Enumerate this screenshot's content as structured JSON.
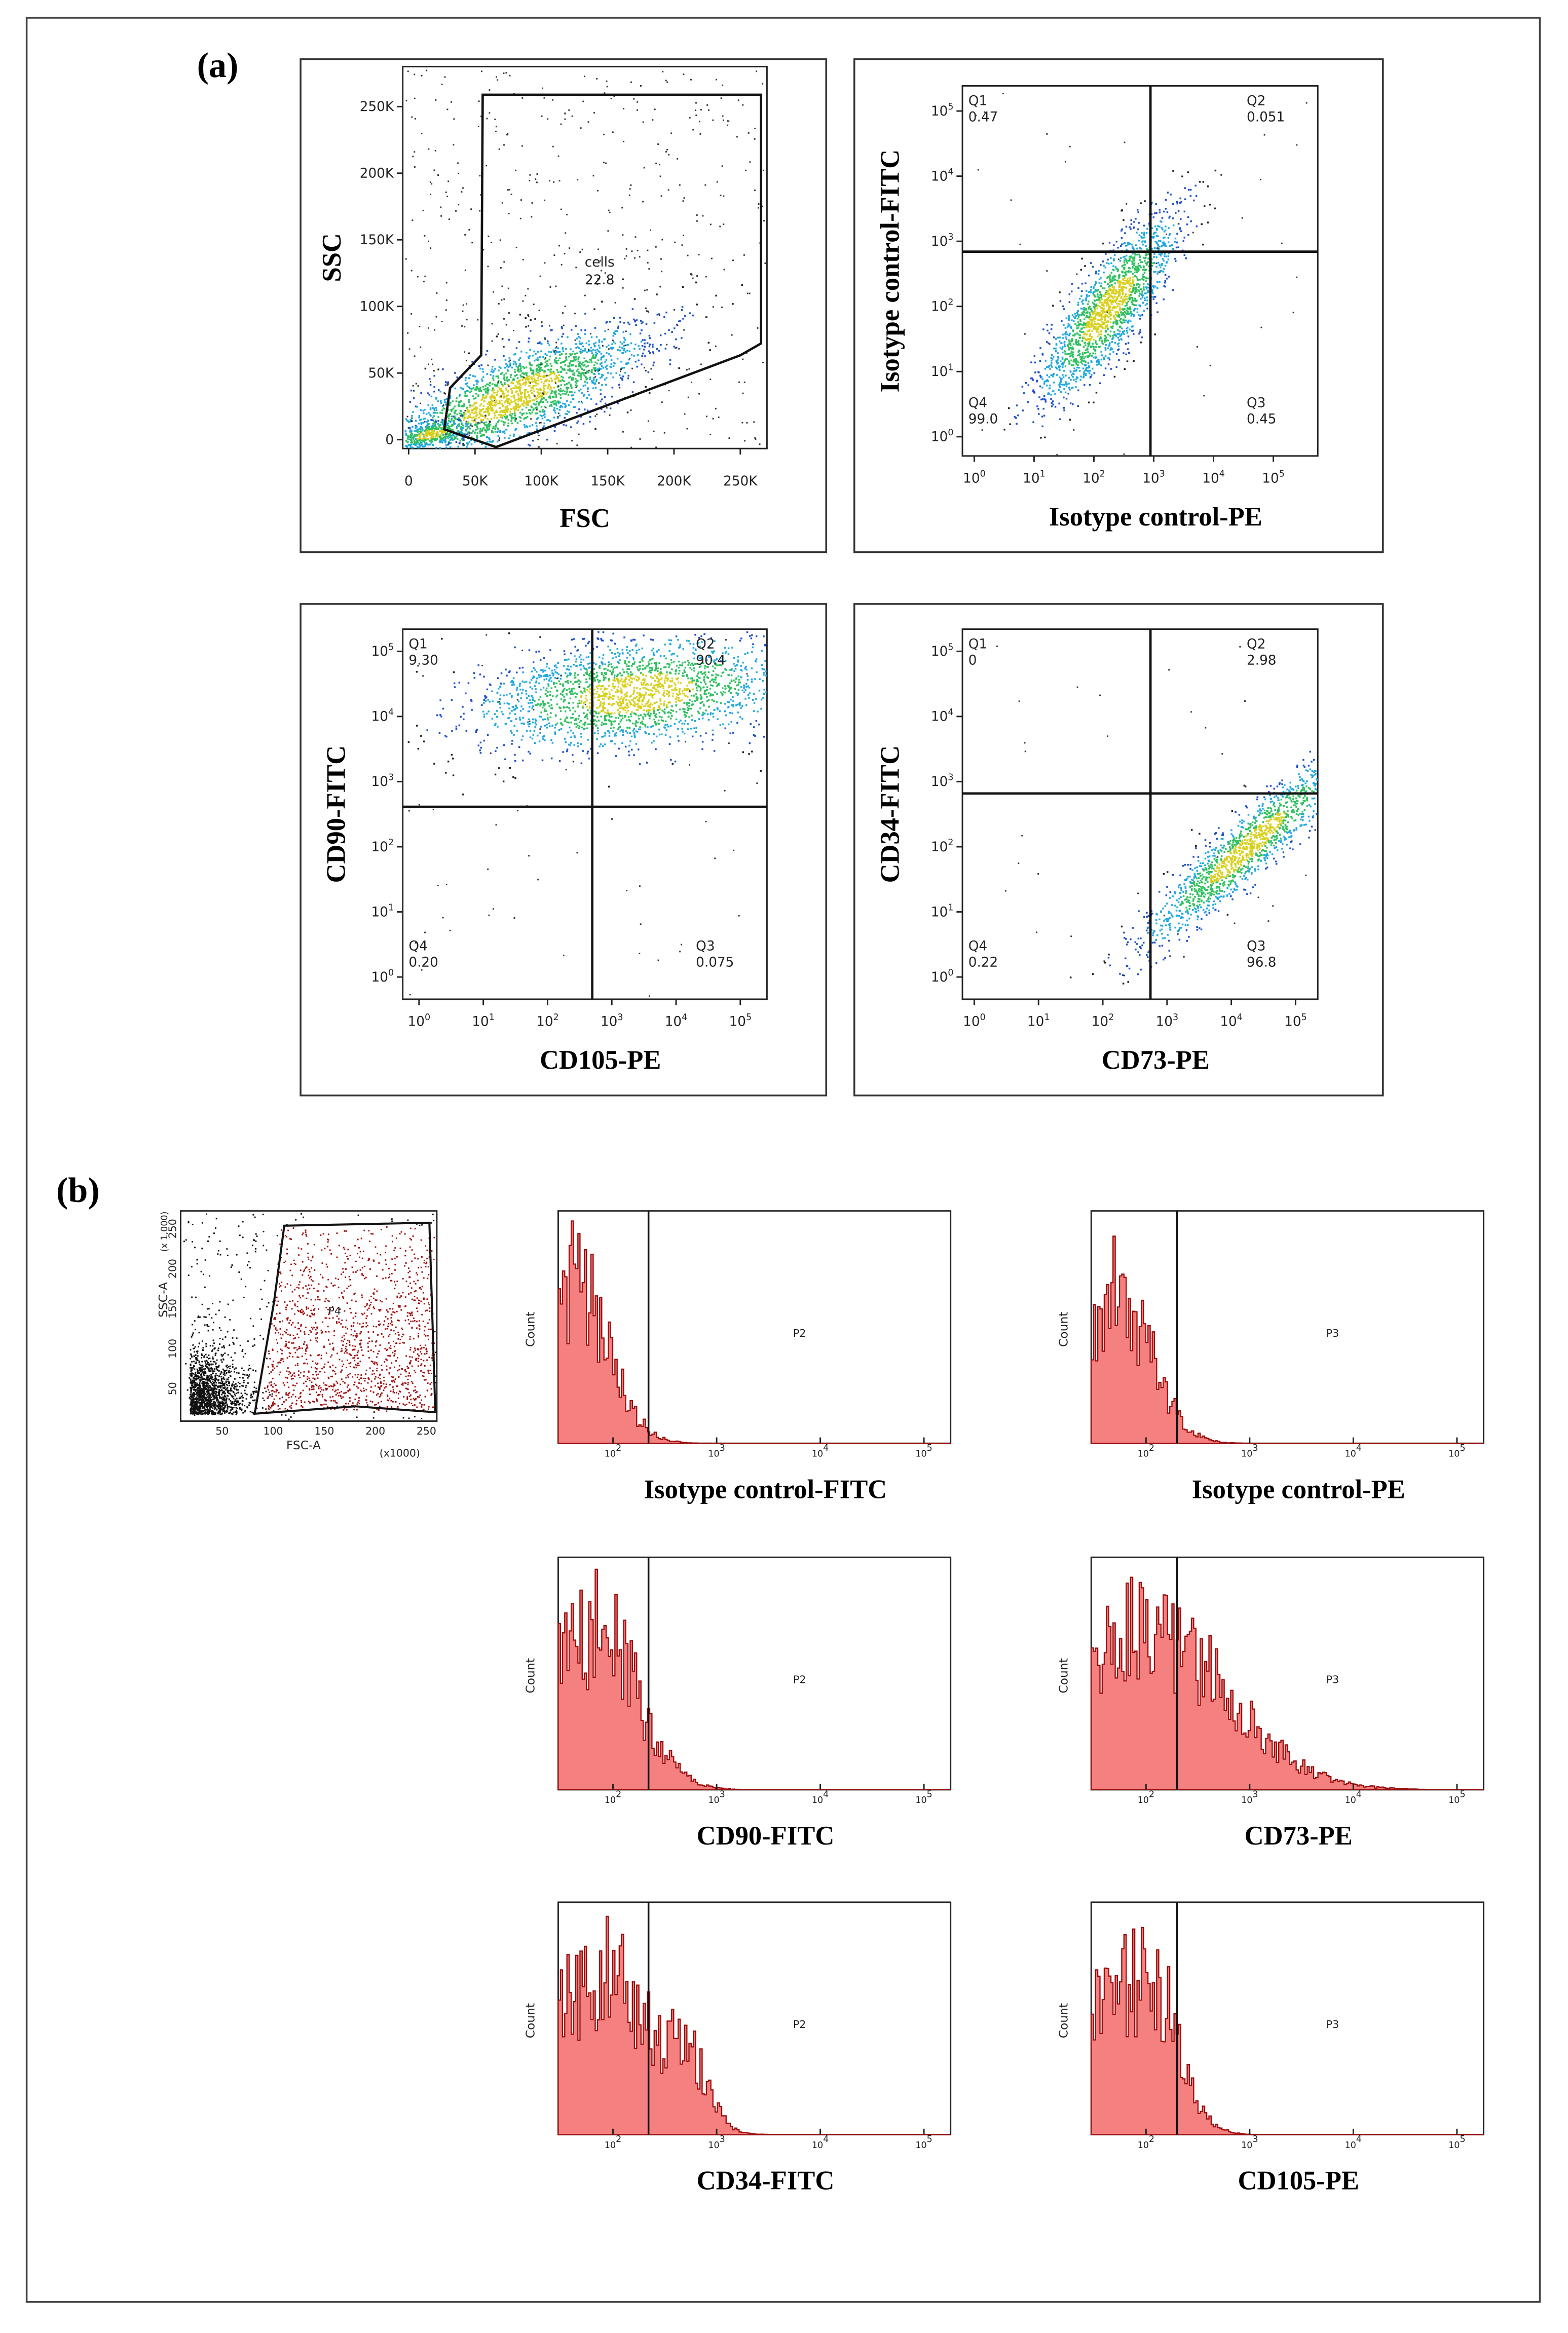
{
  "panel_a": {
    "label": "(a)",
    "scatter": {
      "x_label": "FSC",
      "y_label": "SSC",
      "x_ticks": [
        "0",
        "50K",
        "100K",
        "150K",
        "200K",
        "250K"
      ],
      "y_ticks": [
        "0",
        "50K",
        "100K",
        "150K",
        "200K",
        "250K"
      ],
      "gate_name": "cells",
      "gate_value": "22.8"
    },
    "tick_base": "10",
    "tick_exponents": [
      "0",
      "1",
      "2",
      "3",
      "4",
      "5"
    ],
    "quadrant_plots": [
      {
        "x_label": "Isotype control-PE",
        "y_label": "Isotype control-FITC",
        "quadrants": [
          {
            "name": "Q1",
            "value": "0.47"
          },
          {
            "name": "Q2",
            "value": "0.051"
          },
          {
            "name": "Q3",
            "value": "0.45"
          },
          {
            "name": "Q4",
            "value": "99.0"
          }
        ]
      },
      {
        "x_label": "CD105-PE",
        "y_label": "CD90-FITC",
        "quadrants": [
          {
            "name": "Q1",
            "value": "9.30"
          },
          {
            "name": "Q2",
            "value": "90.4"
          },
          {
            "name": "Q3",
            "value": "0.075"
          },
          {
            "name": "Q4",
            "value": "0.20"
          }
        ]
      },
      {
        "x_label": "CD73-PE",
        "y_label": "CD34-FITC",
        "quadrants": [
          {
            "name": "Q1",
            "value": "0"
          },
          {
            "name": "Q2",
            "value": "2.98"
          },
          {
            "name": "Q3",
            "value": "96.8"
          },
          {
            "name": "Q4",
            "value": "0.22"
          }
        ]
      }
    ]
  },
  "panel_b": {
    "label": "(b)",
    "gate_plot": {
      "x_label": "FSC-A",
      "x_unit": "(x1000)",
      "y_label": "SSC-A",
      "y_unit": "(x 1,000)",
      "gate_name": "P4",
      "x_ticks": [
        "50",
        "100",
        "150",
        "200",
        "250"
      ],
      "y_ticks": [
        "50",
        "100",
        "150",
        "200",
        "250"
      ]
    },
    "y_label": "Count",
    "tick_base": "10",
    "tick_exponents": [
      "2",
      "3",
      "4",
      "5"
    ],
    "histograms": [
      {
        "x_label": "Isotype control-FITC",
        "gate_name": "P2"
      },
      {
        "x_label": "Isotype control-PE",
        "gate_name": "P3"
      },
      {
        "x_label": "CD90-FITC",
        "gate_name": "P2"
      },
      {
        "x_label": "CD73-PE",
        "gate_name": "P3"
      },
      {
        "x_label": "CD34-FITC",
        "gate_name": "P2"
      },
      {
        "x_label": "CD105-PE",
        "gate_name": "P3"
      }
    ]
  }
}
